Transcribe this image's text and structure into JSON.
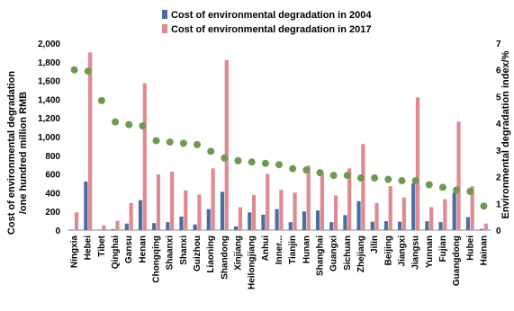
{
  "chart_data": {
    "type": "bar",
    "categories": [
      "Ningxia",
      "Hebei",
      "Tibet",
      "Qinghai",
      "Gansu",
      "Henan",
      "Chongqing",
      "Shaanxi",
      "Shanxi",
      "Guizhou",
      "Liaoning",
      "Shandong",
      "Xinjiang",
      "Heilongjiang",
      "Anhui",
      "Inner...",
      "Tianjin",
      "Hunan",
      "Shanghai",
      "Guangxi",
      "Sichuan",
      "Zhejiang",
      "Jilin",
      "Beijing",
      "Jiangxi",
      "Jiangsu",
      "Yunnan",
      "Fujian",
      "Guangdong",
      "Hubei",
      "Hainan"
    ],
    "series": [
      {
        "name": "Cost of environmental degradation in 2004",
        "axis": "left",
        "color": "#4a6ea4",
        "values": [
          5,
          520,
          5,
          10,
          70,
          320,
          75,
          85,
          145,
          60,
          225,
          410,
          40,
          190,
          165,
          225,
          85,
          200,
          210,
          85,
          160,
          310,
          90,
          95,
          90,
          500,
          95,
          85,
          400,
          140,
          12
        ]
      },
      {
        "name": "Cost of environmental degradation in 2017",
        "axis": "left",
        "color": "#e0898e",
        "values": [
          190,
          1900,
          50,
          100,
          290,
          1570,
          595,
          625,
          425,
          380,
          660,
          1820,
          245,
          375,
          600,
          430,
          400,
          690,
          610,
          370,
          660,
          920,
          290,
          470,
          350,
          1420,
          245,
          330,
          1160,
          470,
          70
        ]
      },
      {
        "name": "Environmental degradation index",
        "axis": "right",
        "type": "scatter",
        "color": "#6e9a50",
        "values": [
          6.0,
          5.95,
          4.85,
          4.05,
          3.95,
          3.9,
          3.35,
          3.3,
          3.25,
          3.2,
          2.95,
          2.7,
          2.6,
          2.55,
          2.5,
          2.45,
          2.3,
          2.25,
          2.15,
          2.05,
          2.05,
          1.95,
          1.95,
          1.9,
          1.85,
          1.85,
          1.7,
          1.6,
          1.5,
          1.45,
          0.9
        ]
      }
    ],
    "ylabel": "Cost of environmental degradation\n/one hundred million RMB",
    "ylim": [
      0,
      2000
    ],
    "yticks": [
      "0",
      "200",
      "400",
      "600",
      "800",
      "1,000",
      "1,200",
      "1,400",
      "1,600",
      "1,800",
      "2,000"
    ],
    "y2label": "Environmental degradation index/%",
    "y2lim": [
      0,
      7
    ],
    "y2ticks": [
      "0",
      "1",
      "2",
      "3",
      "4",
      "5",
      "6",
      "7"
    ],
    "legend": [
      "Cost of environmental degradation in 2004",
      "Cost of environmental degradation in 2017"
    ],
    "legend_position": "top",
    "grid": false
  }
}
